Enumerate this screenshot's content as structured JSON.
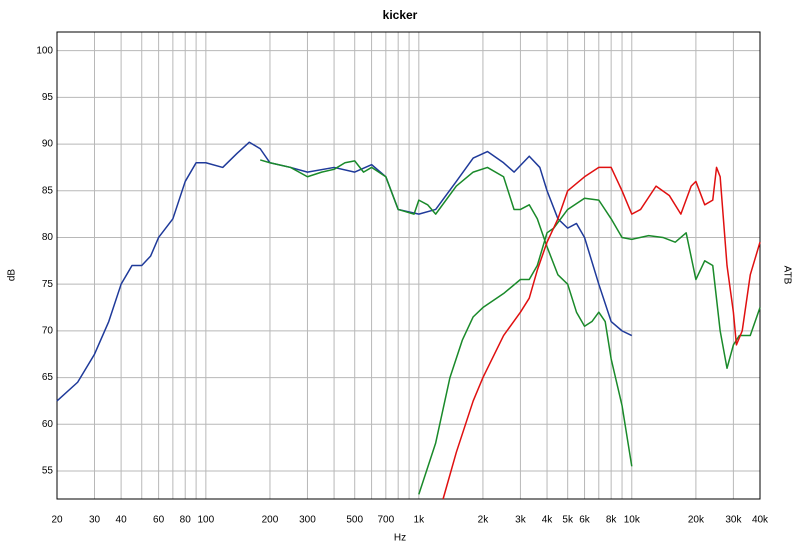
{
  "chart_data": {
    "type": "line",
    "title": "kicker",
    "x_label": "Hz",
    "y_label": "dB",
    "y2_label": "ATB",
    "xscale": "log",
    "xlim": [
      20,
      40000
    ],
    "ylim": [
      52,
      102
    ],
    "xticks": [
      20,
      30,
      40,
      60,
      80,
      100,
      200,
      300,
      500,
      700,
      {
        "value": 1000,
        "label": "1k"
      },
      {
        "value": 2000,
        "label": "2k"
      },
      {
        "value": 3000,
        "label": "3k"
      },
      {
        "value": 4000,
        "label": "4k"
      },
      {
        "value": 5000,
        "label": "5k"
      },
      {
        "value": 6000,
        "label": "6k"
      },
      {
        "value": 8000,
        "label": "8k"
      },
      {
        "value": 10000,
        "label": "10k"
      },
      {
        "value": 20000,
        "label": "20k"
      },
      {
        "value": 30000,
        "label": "30k"
      },
      {
        "value": 40000,
        "label": "40k"
      }
    ],
    "xgrid_minor": [
      50,
      70,
      90,
      400,
      600,
      800,
      900,
      7000,
      9000
    ],
    "yticks": [
      55,
      60,
      65,
      70,
      75,
      80,
      85,
      90,
      95,
      100
    ],
    "grid": true,
    "series": [
      {
        "color": "#1f3a9a",
        "x": [
          20,
          25,
          30,
          35,
          40,
          45,
          50,
          55,
          60,
          70,
          80,
          90,
          100,
          120,
          140,
          160,
          180,
          200,
          250,
          300,
          400,
          500,
          600,
          700,
          800,
          1000,
          1200,
          1500,
          1800,
          2100,
          2500,
          2800,
          3300,
          3700,
          4000,
          4500,
          5000,
          5500,
          6000,
          7000,
          8000,
          9000,
          10000
        ],
        "values": [
          62.5,
          64.5,
          67.5,
          71,
          75,
          77,
          77,
          78,
          80,
          82,
          86,
          88,
          88,
          87.5,
          89,
          90.2,
          89.5,
          88,
          87.5,
          87,
          87.5,
          87,
          87.8,
          86.5,
          83,
          82.5,
          83,
          86,
          88.5,
          89.2,
          88,
          87,
          88.7,
          87.5,
          85,
          82,
          81,
          81.5,
          80,
          75,
          71,
          70,
          69.5
        ]
      },
      {
        "color": "#1a8a2a",
        "x": [
          180,
          200,
          250,
          300,
          350,
          400,
          450,
          500,
          550,
          600,
          700,
          800,
          950,
          1000,
          1100,
          1200,
          1500,
          1800,
          2100,
          2500,
          2800,
          3000,
          3300,
          3600,
          4000,
          4500,
          5000,
          5500,
          6000,
          6500,
          7000,
          7500,
          8000,
          9000,
          10000
        ],
        "values": [
          88.3,
          88,
          87.5,
          86.5,
          87,
          87.3,
          88,
          88.2,
          87,
          87.5,
          86.5,
          83,
          82.5,
          84,
          83.5,
          82.5,
          85.5,
          87,
          87.5,
          86.5,
          83,
          83,
          83.5,
          82,
          79,
          76,
          75,
          72,
          70.5,
          71,
          72,
          71,
          67,
          62,
          55.5
        ]
      },
      {
        "color": "#1a8a2a",
        "x": [
          1000,
          1200,
          1400,
          1600,
          1800,
          2000,
          2500,
          3000,
          3300,
          3600,
          4000,
          4300,
          5000,
          6000,
          7000,
          8000,
          9000,
          10000,
          12000,
          14000,
          16000,
          18000,
          20000,
          22000,
          24000,
          26000,
          28000,
          30000,
          32000,
          36000,
          40000
        ],
        "values": [
          52.5,
          58,
          65,
          69,
          71.5,
          72.5,
          74,
          75.5,
          75.5,
          77,
          80.5,
          81,
          83,
          84.2,
          84,
          82,
          80,
          79.8,
          80.2,
          80,
          79.5,
          80.5,
          75.5,
          77.5,
          77,
          70,
          66,
          68.5,
          69.5,
          69.5,
          72.5
        ]
      },
      {
        "color": "#e01010",
        "x": [
          1300,
          1500,
          1800,
          2000,
          2500,
          3000,
          3300,
          3600,
          4000,
          4500,
          5000,
          6000,
          7000,
          8000,
          9000,
          10000,
          11000,
          13000,
          15000,
          17000,
          19000,
          20000,
          22000,
          24000,
          25000,
          26000,
          28000,
          30000,
          31000,
          33000,
          36000,
          40000
        ],
        "values": [
          52,
          57,
          62.5,
          65,
          69.5,
          72,
          73.5,
          76.5,
          79.5,
          82,
          85,
          86.5,
          87.5,
          87.5,
          85,
          82.5,
          83,
          85.5,
          84.5,
          82.5,
          85.5,
          86,
          83.5,
          84,
          87.5,
          86.5,
          77,
          72,
          68.5,
          70,
          76,
          79.5
        ]
      }
    ]
  }
}
